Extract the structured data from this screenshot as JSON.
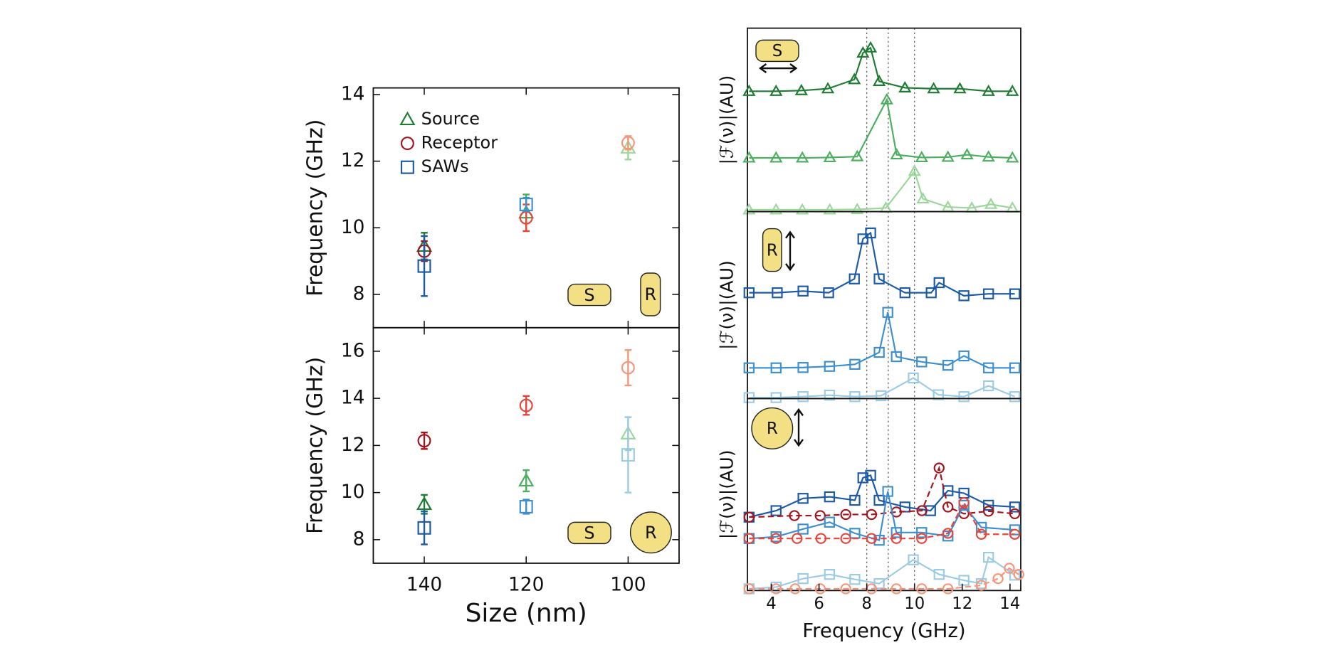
{
  "chart_data": [
    {
      "type": "errorbar",
      "x": [
        140,
        120,
        100
      ],
      "xlim": [
        150,
        90
      ],
      "ylim": [
        7,
        14.2
      ],
      "yticks": [
        8,
        10,
        12,
        14
      ],
      "ylabel": "Frequency (GHz)",
      "legend": "upper left",
      "annotations": [
        "S",
        "R"
      ],
      "series": [
        {
          "name": "Source",
          "marker": "triangle",
          "colors": [
            "#1e7b34",
            "#4cae5f",
            "#9bd79b"
          ],
          "values": [
            9.45,
            10.45,
            12.4
          ],
          "errors": [
            0.4,
            0.55,
            0.35
          ]
        },
        {
          "name": "Receptor",
          "marker": "circle",
          "colors": [
            "#a5141c",
            "#e8463a",
            "#f7957a"
          ],
          "values": [
            9.3,
            10.3,
            12.55
          ],
          "errors": [
            0.3,
            0.4,
            0.2
          ]
        },
        {
          "name": "SAWs",
          "marker": "square",
          "colors": [
            "#1c5aa8",
            "#3d8fd0",
            "#9ccbe6"
          ],
          "values": [
            8.85,
            10.7,
            null
          ],
          "errors": [
            0.9,
            0.2,
            null
          ]
        }
      ]
    },
    {
      "type": "errorbar",
      "x": [
        140,
        120,
        100
      ],
      "xlim": [
        150,
        90
      ],
      "ylim": [
        7,
        17
      ],
      "yticks": [
        8,
        10,
        12,
        14,
        16
      ],
      "xticks": [
        140,
        120,
        100
      ],
      "xlabel": "Size (nm)",
      "ylabel": "Frequency (GHz)",
      "annotations": [
        "S",
        "R"
      ],
      "series": [
        {
          "marker": "triangle",
          "colors": [
            "#1e7b34",
            "#4cae5f",
            "#9bd79b"
          ],
          "values": [
            9.5,
            10.5,
            12.5
          ],
          "errors": [
            0.4,
            0.45,
            0.7
          ]
        },
        {
          "marker": "circle",
          "colors": [
            "#a5141c",
            "#e8463a",
            "#f7957a"
          ],
          "values": [
            12.2,
            13.7,
            15.3
          ],
          "errors": [
            0.35,
            0.4,
            0.75
          ]
        },
        {
          "marker": "square",
          "colors": [
            "#1c5aa8",
            "#3d8fd0",
            "#9ccbe6"
          ],
          "values": [
            8.5,
            9.4,
            11.6
          ],
          "errors": [
            0.7,
            0.3,
            1.6
          ]
        }
      ]
    },
    {
      "type": "line",
      "xlim": [
        3,
        14.45
      ],
      "xticks": [
        4,
        6,
        8,
        10,
        12,
        14
      ],
      "xlabel": "Frequency (GHz)",
      "vlines": [
        8,
        8.9,
        10
      ],
      "panels": [
        {
          "ylim": [
            0,
            10
          ],
          "ylabel": "|ℱ(ν)|(AU)",
          "annotation": "S",
          "series": [
            {
              "marker": "triangle",
              "color": "#1e7b34",
              "x": [
                3.07,
                4.2,
                5.26,
                6.37,
                7.48,
                7.84,
                8.16,
                8.52,
                9.6,
                10.8,
                11.9,
                13.1,
                14.1
              ],
              "values": [
                6.56,
                6.56,
                6.6,
                6.7,
                7.2,
                8.65,
                8.93,
                7.1,
                6.75,
                6.7,
                6.7,
                6.56,
                6.56
              ]
            },
            {
              "marker": "triangle",
              "color": "#4cae5f",
              "x": [
                3.07,
                4.2,
                5.3,
                6.45,
                7.6,
                8.84,
                9.25,
                10.3,
                11.4,
                12.2,
                13.1,
                14.1
              ],
              "values": [
                2.93,
                2.93,
                2.93,
                2.95,
                3.0,
                6.1,
                3.1,
                2.95,
                2.97,
                3.1,
                2.98,
                2.93
              ]
            },
            {
              "marker": "triangle",
              "color": "#9bd79b",
              "x": [
                3.07,
                4.2,
                5.3,
                6.45,
                7.6,
                8.8,
                10.0,
                10.35,
                11.4,
                12.4,
                13.2,
                14.1
              ],
              "values": [
                0.1,
                0.1,
                0.1,
                0.1,
                0.12,
                0.2,
                2.2,
                0.7,
                0.25,
                0.2,
                0.4,
                0.2
              ]
            }
          ]
        },
        {
          "ylim": [
            0,
            10
          ],
          "ylabel": "|ℱ(ν)|(AU)",
          "annotation": "R",
          "series": [
            {
              "marker": "square",
              "color": "#1c5aa8",
              "x": [
                3.07,
                4.25,
                5.33,
                6.4,
                7.48,
                7.84,
                8.16,
                8.52,
                9.6,
                10.7,
                11.03,
                12.07,
                13.1,
                14.2
              ],
              "values": [
                5.66,
                5.66,
                5.75,
                5.66,
                6.4,
                8.54,
                8.86,
                6.4,
                5.66,
                5.66,
                6.2,
                5.5,
                5.6,
                5.6
              ]
            },
            {
              "marker": "square",
              "color": "#3d8fd0",
              "x": [
                3.07,
                4.2,
                5.33,
                6.44,
                7.5,
                8.52,
                8.88,
                9.24,
                10.3,
                11.4,
                12.07,
                13.1,
                14.2
              ],
              "values": [
                1.64,
                1.64,
                1.66,
                1.72,
                1.83,
                2.47,
                4.61,
                2.24,
                1.96,
                1.78,
                2.28,
                1.64,
                1.64
              ]
            },
            {
              "marker": "square",
              "color": "#9ccbe6",
              "x": [
                3.07,
                4.2,
                5.33,
                6.44,
                7.5,
                8.6,
                9.95,
                11.0,
                12.07,
                13.1,
                14.2
              ],
              "values": [
                0.05,
                0.05,
                0.1,
                0.18,
                0.1,
                0.15,
                1.1,
                0.2,
                0.1,
                0.68,
                0.1
              ]
            }
          ]
        },
        {
          "ylim": [
            0,
            10
          ],
          "ylabel": "|ℱ(ν)|(AU)",
          "annotation": "R",
          "series": [
            {
              "marker": "square",
              "color": "#1c5aa8",
              "x": [
                3.07,
                4.2,
                5.33,
                6.44,
                7.5,
                7.84,
                8.16,
                8.52,
                9.6,
                10.67,
                11.4,
                12.07,
                13.1,
                14.2
              ],
              "values": [
                3.82,
                4.16,
                4.8,
                4.88,
                4.7,
                5.87,
                6.0,
                4.7,
                4.35,
                4.16,
                5.2,
                5.07,
                4.44,
                4.35
              ]
            },
            {
              "marker": "circle",
              "color": "#a5141c",
              "linestyle": "dashed",
              "x": [
                3.07,
                4.97,
                6.05,
                7.12,
                8.2,
                9.24,
                10.31,
                11.03,
                11.4,
                12.07,
                13.1,
                14.2
              ],
              "values": [
                3.82,
                3.9,
                3.9,
                3.96,
                3.96,
                4.09,
                4.16,
                6.38,
                4.35,
                4.0,
                4.13,
                4.0
              ]
            },
            {
              "marker": "square",
              "color": "#3d8fd0",
              "x": [
                3.07,
                4.2,
                5.33,
                6.44,
                7.5,
                8.52,
                8.88,
                9.24,
                10.3,
                11.4,
                12.07,
                12.8,
                14.2
              ],
              "values": [
                2.71,
                2.8,
                3.2,
                3.56,
                2.98,
                2.62,
                5.16,
                3.02,
                3.02,
                2.84,
                4.44,
                3.29,
                3.16
              ]
            },
            {
              "marker": "circle",
              "color": "#e8463a",
              "linestyle": "dashed",
              "x": [
                3.07,
                4.2,
                5.08,
                6.08,
                7.12,
                8.2,
                9.24,
                10.3,
                11.4,
                12.07,
                12.8,
                14.2
              ],
              "values": [
                2.71,
                2.71,
                2.71,
                2.71,
                2.71,
                2.71,
                2.71,
                2.71,
                2.98,
                4.58,
                2.93,
                2.93
              ]
            },
            {
              "marker": "square",
              "color": "#9ccbe6",
              "x": [
                3.07,
                4.2,
                5.33,
                6.44,
                7.5,
                8.52,
                9.95,
                11.03,
                12.07,
                12.8,
                13.1,
                14.2
              ],
              "values": [
                0.09,
                0.18,
                0.62,
                0.84,
                0.58,
                0.36,
                1.6,
                0.84,
                0.53,
                0.36,
                1.73,
                0.8
              ]
            },
            {
              "marker": "circle",
              "color": "#f7957a",
              "linestyle": "dashed",
              "x": [
                3.07,
                4.2,
                5.0,
                6.05,
                7.12,
                8.2,
                9.24,
                10.3,
                11.4,
                12.8,
                13.5,
                13.97,
                14.37
              ],
              "values": [
                0.09,
                0.09,
                0.09,
                0.09,
                0.09,
                0.09,
                0.09,
                0.09,
                0.09,
                0.27,
                0.62,
                1.16,
                0.84
              ]
            }
          ]
        }
      ]
    }
  ]
}
